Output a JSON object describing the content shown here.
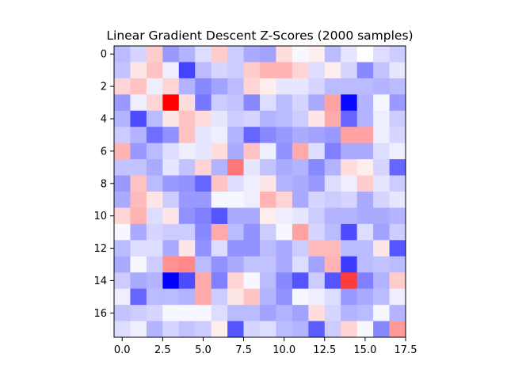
{
  "chart_data": {
    "type": "heatmap",
    "title": "Linear Gradient Descent Z-Scores (2000 samples)",
    "xlabel": "",
    "ylabel": "",
    "colormap": "bwr",
    "vmin": -3,
    "vmax": 3,
    "xlim": [
      -0.5,
      17.5
    ],
    "ylim": [
      17.5,
      -0.5
    ],
    "x_ticks": [
      0.0,
      2.5,
      5.0,
      7.5,
      10.0,
      12.5,
      15.0,
      17.5
    ],
    "x_tick_labels": [
      "0.0",
      "2.5",
      "5.0",
      "7.5",
      "10.0",
      "12.5",
      "15.0",
      "17.5"
    ],
    "y_ticks": [
      0,
      2,
      4,
      6,
      8,
      10,
      12,
      14,
      16
    ],
    "y_tick_labels": [
      "0",
      "2",
      "4",
      "6",
      "8",
      "10",
      "12",
      "14",
      "16"
    ],
    "grid": false,
    "values": [
      [
        -0.8,
        -0.5,
        0.6,
        -1.2,
        -0.9,
        -0.4,
        0.6,
        -0.6,
        -1.0,
        -1.1,
        0.4,
        -0.1,
        0.2,
        -0.8,
        -0.3,
        0.0,
        -0.4,
        -0.6
      ],
      [
        -0.7,
        0.3,
        0.7,
        -0.2,
        -2.2,
        -0.8,
        -0.5,
        -0.6,
        0.6,
        0.9,
        0.9,
        0.5,
        -0.4,
        0.2,
        -0.5,
        -1.4,
        -0.7,
        -0.3
      ],
      [
        0.5,
        0.7,
        -0.2,
        0.5,
        -0.9,
        -1.4,
        -1.1,
        -0.8,
        0.5,
        0.2,
        -0.3,
        -0.3,
        -0.5,
        -0.8,
        -0.8,
        -0.8,
        -0.9,
        -0.8
      ],
      [
        -1.2,
        -0.2,
        0.5,
        3.0,
        0.4,
        -1.6,
        -0.6,
        -0.7,
        -1.4,
        -0.4,
        -0.8,
        -0.5,
        -1.0,
        1.1,
        -2.9,
        -0.9,
        -0.1,
        -1.2
      ],
      [
        -0.9,
        -2.1,
        -0.8,
        0.3,
        0.7,
        0.4,
        -0.3,
        -0.6,
        -0.5,
        -0.9,
        -0.8,
        -0.6,
        0.3,
        1.0,
        -1.8,
        -0.9,
        -0.2,
        -0.6
      ],
      [
        -0.6,
        -0.9,
        -1.7,
        -1.3,
        0.7,
        -0.3,
        -0.2,
        -0.9,
        -1.8,
        -1.4,
        -1.2,
        -1.0,
        -1.1,
        -1.2,
        1.1,
        1.1,
        -0.2,
        -0.5
      ],
      [
        0.9,
        -1.2,
        -0.8,
        -0.4,
        -0.2,
        -0.3,
        0.4,
        -1.0,
        0.7,
        -0.2,
        -1.3,
        1.0,
        -0.4,
        -1.5,
        -1.0,
        -1.0,
        -0.4,
        -0.2
      ],
      [
        -0.7,
        -0.7,
        -1.0,
        -0.3,
        -0.7,
        0.5,
        -0.9,
        1.6,
        -0.3,
        -0.7,
        -1.0,
        -0.9,
        -1.4,
        -0.9,
        0.4,
        0.2,
        -0.5,
        -1.8
      ],
      [
        -1.2,
        0.7,
        -0.8,
        -1.2,
        -1.3,
        -1.8,
        0.7,
        -0.4,
        -0.2,
        0.3,
        -0.9,
        -1.0,
        -1.2,
        -0.4,
        -0.2,
        0.6,
        -0.3,
        -0.6
      ],
      [
        -1.0,
        0.8,
        0.3,
        -0.6,
        -1.2,
        -1.2,
        -0.1,
        -0.1,
        -0.2,
        0.9,
        0.5,
        -1.0,
        -0.5,
        -0.6,
        -0.5,
        -1.0,
        -0.5,
        -0.3
      ],
      [
        0.5,
        0.9,
        -0.4,
        0.3,
        -1.3,
        -1.5,
        -2.0,
        -1.0,
        -1.0,
        0.2,
        -0.2,
        -0.3,
        -0.6,
        -0.9,
        -0.9,
        -1.0,
        -1.0,
        -0.9
      ],
      [
        -0.1,
        -1.0,
        -0.5,
        -0.6,
        -0.6,
        -1.4,
        1.0,
        -0.8,
        -1.3,
        -0.6,
        -0.1,
        1.1,
        -0.5,
        -0.8,
        -2.1,
        -0.4,
        -1.1,
        -0.6
      ],
      [
        -0.8,
        -0.4,
        -0.4,
        -1.0,
        0.3,
        -1.3,
        -0.4,
        -1.3,
        -1.3,
        -0.8,
        -1.0,
        -0.6,
        0.8,
        0.8,
        -0.8,
        -0.8,
        0.3,
        -2.0
      ],
      [
        -1.0,
        -0.1,
        -0.6,
        1.3,
        1.4,
        -0.8,
        -1.3,
        -1.0,
        -0.7,
        -0.7,
        -1.0,
        -0.4,
        -1.1,
        0.9,
        -2.3,
        -0.8,
        -0.7,
        -0.8
      ],
      [
        -0.6,
        -1.0,
        -0.9,
        -3.0,
        -2.1,
        1.0,
        -1.5,
        0.5,
        -0.1,
        -0.8,
        -1.4,
        -2.0,
        -0.6,
        -2.0,
        2.3,
        -1.5,
        -0.9,
        0.6
      ],
      [
        -0.2,
        -1.8,
        -0.8,
        -0.8,
        -0.9,
        1.0,
        -0.6,
        0.3,
        0.7,
        -0.9,
        -1.3,
        -0.1,
        -0.2,
        -0.4,
        -1.2,
        -1.0,
        -0.8,
        -0.2
      ],
      [
        -0.7,
        -0.6,
        -0.5,
        -0.1,
        -0.1,
        -0.1,
        -0.4,
        -0.8,
        -0.8,
        -1.1,
        -0.9,
        -1.1,
        0.4,
        -0.5,
        -0.9,
        -0.8,
        -0.1,
        -0.9
      ],
      [
        -0.4,
        -0.2,
        -0.9,
        -0.5,
        -0.7,
        -0.6,
        0.2,
        -2.0,
        -0.5,
        -0.4,
        -0.8,
        -0.9,
        -1.9,
        -0.6,
        0.5,
        -0.1,
        -1.4,
        1.2
      ]
    ]
  }
}
